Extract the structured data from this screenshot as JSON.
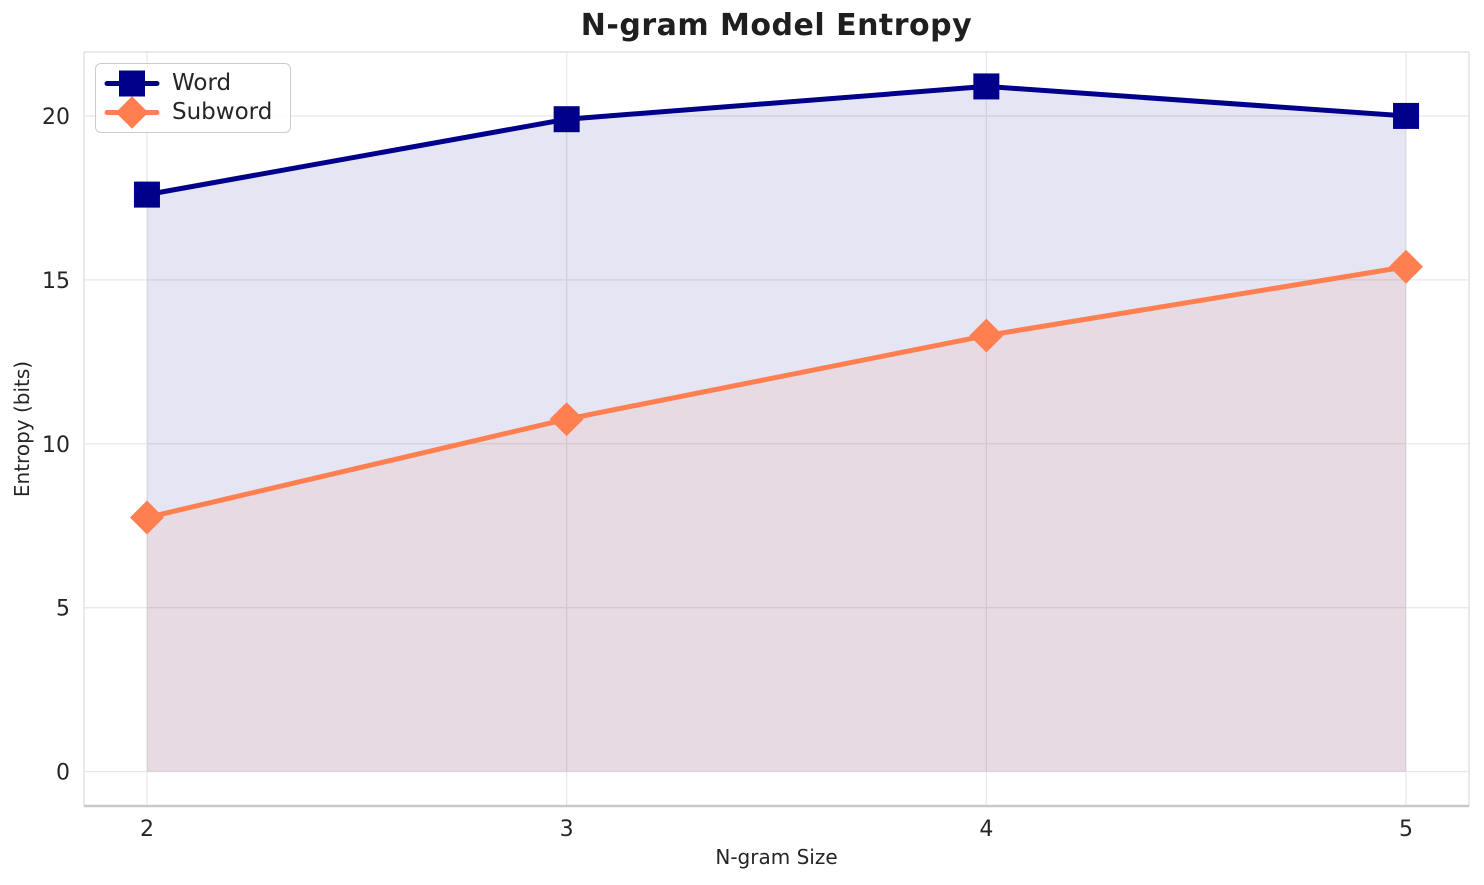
{
  "chart_data": {
    "type": "line",
    "title": "N-gram Model Entropy",
    "xlabel": "N-gram Size",
    "ylabel": "Entropy (bits)",
    "x": [
      2,
      3,
      4,
      5
    ],
    "series": [
      {
        "name": "Word",
        "values": [
          17.6,
          19.9,
          20.9,
          20.0
        ],
        "color": "#00008B",
        "marker": "square",
        "fill_to_zero": true,
        "fill_opacity": 0.1
      },
      {
        "name": "Subword",
        "values": [
          7.75,
          10.75,
          13.3,
          15.4
        ],
        "color": "#FF7F50",
        "marker": "diamond",
        "fill_to_zero": true,
        "fill_opacity": 0.1
      }
    ],
    "xticks": [
      2,
      3,
      4,
      5
    ],
    "yticks": [
      0,
      5,
      10,
      15,
      20
    ],
    "xlim": [
      1.85,
      5.15
    ],
    "ylim": [
      -1.05,
      21.95
    ],
    "grid": true,
    "legend_position": "upper-left"
  },
  "styles": {
    "text_color": "#262626",
    "title_color": "#1f1f1f",
    "grid_color": "#E8E8E8",
    "spine_color": "#E2E2E2",
    "bottom_spine_color": "#C9C9C9",
    "background": "#FFFFFF",
    "accent_navy": "#00008B",
    "accent_coral": "#FF7F50"
  }
}
